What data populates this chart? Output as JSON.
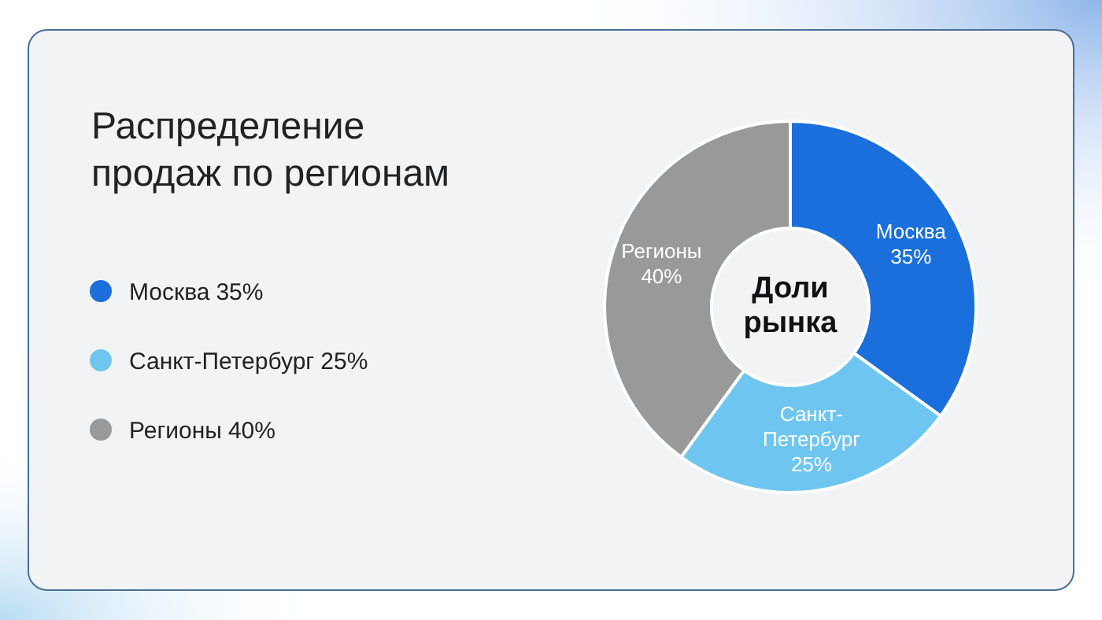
{
  "chart_data": {
    "type": "donut",
    "title": "Распределение продаж по регионам",
    "categories": [
      "Москва",
      "Санкт-Петербург",
      "Регионы"
    ],
    "values": [
      35,
      25,
      40
    ],
    "colors": [
      "#1a6fdc",
      "#6ec6f0",
      "#999999"
    ],
    "value_labels": [
      "35%",
      "25%",
      "40%"
    ],
    "data_labels": true,
    "legend": "left",
    "annotations": [
      "Доли рынка"
    ]
  }
}
